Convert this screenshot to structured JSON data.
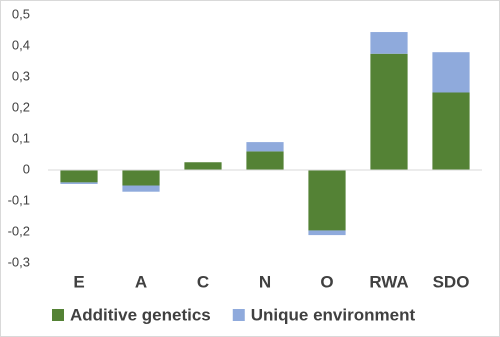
{
  "chart_data": {
    "type": "stacked-bar",
    "categories": [
      "E",
      "A",
      "C",
      "N",
      "O",
      "RWA",
      "SDO"
    ],
    "series": [
      {
        "name": "Additive genetics",
        "color": "#548235",
        "values": [
          -0.04,
          -0.05,
          0.025,
          0.06,
          -0.195,
          0.375,
          0.25
        ]
      },
      {
        "name": "Unique environment",
        "color": "#8faadc",
        "values": [
          -0.005,
          -0.02,
          0,
          0.03,
          -0.015,
          0.07,
          0.13
        ]
      }
    ],
    "ylim": [
      -0.3,
      0.5
    ],
    "yticks": [
      {
        "value": -0.3,
        "label": "-0,3"
      },
      {
        "value": -0.2,
        "label": "-0,2"
      },
      {
        "value": -0.1,
        "label": "-0,1"
      },
      0,
      {
        "value": 0.1,
        "label": "0,1"
      },
      {
        "value": 0.2,
        "label": "0,2"
      },
      {
        "value": 0.3,
        "label": "0,3"
      },
      {
        "value": 0.4,
        "label": "0,4"
      },
      {
        "value": 0.5,
        "label": "0,5"
      }
    ],
    "legend": "bottom"
  }
}
